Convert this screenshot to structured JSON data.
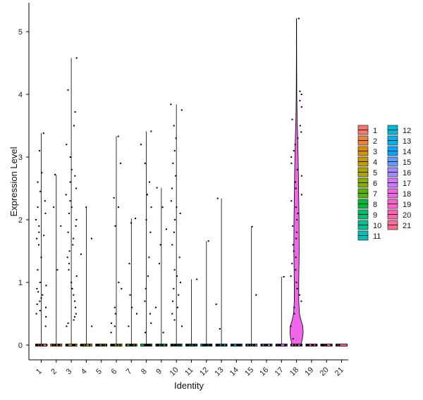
{
  "chart_data": {
    "type": "violin",
    "xlabel": "Identity",
    "ylabel": "Expression Level",
    "categories": [
      "1",
      "2",
      "3",
      "4",
      "5",
      "6",
      "7",
      "8",
      "9",
      "10",
      "11",
      "12",
      "13",
      "14",
      "15",
      "16",
      "17",
      "18",
      "19",
      "20",
      "21"
    ],
    "yticks": [
      0,
      1,
      2,
      3,
      4,
      5
    ],
    "ylim": [
      -0.25,
      5.45
    ],
    "grid": false,
    "legend_position": "right",
    "legend_columns": 2,
    "colors": [
      "#F8766D",
      "#EB8335",
      "#DA8F00",
      "#C49A00",
      "#A9A400",
      "#86AC00",
      "#53B400",
      "#00BA38",
      "#00BE6D",
      "#00C094",
      "#00C0B8",
      "#00BBDA",
      "#00B4F0",
      "#00A9FF",
      "#619CFF",
      "#A58AFF",
      "#D277FF",
      "#F066EA",
      "#FE61CF",
      "#FF64B0",
      "#FF6C91"
    ],
    "max_values": [
      3.38,
      2.72,
      4.58,
      2.2,
      0,
      3.33,
      2.02,
      3.41,
      2.51,
      3.84,
      1.05,
      1.66,
      2.34,
      0,
      1.89,
      0,
      1.09,
      5.21,
      0,
      0,
      0
    ],
    "nonzero_points": [
      [
        0.3,
        0.45,
        0.5,
        0.55,
        0.6,
        0.65,
        0.7,
        0.75,
        0.8,
        0.85,
        0.9,
        0.95,
        1.0,
        1.2,
        1.4,
        1.6,
        1.7,
        1.75,
        1.8,
        1.9,
        2.0,
        2.1,
        2.2,
        2.3,
        2.45,
        2.6,
        2.75,
        3.1,
        3.38
      ],
      [
        1.2,
        1.9,
        2.2,
        2.72
      ],
      [
        0.3,
        0.35,
        0.4,
        0.45,
        0.5,
        0.6,
        0.7,
        0.8,
        0.9,
        1.0,
        1.1,
        1.2,
        1.3,
        1.4,
        1.5,
        1.6,
        1.7,
        1.8,
        1.9,
        2.0,
        2.1,
        2.2,
        2.3,
        2.4,
        2.5,
        2.6,
        2.7,
        2.8,
        3.0,
        3.2,
        3.5,
        3.72,
        4.07,
        4.58
      ],
      [
        0.3,
        1.45,
        1.7,
        2.2
      ],
      [],
      [
        0.2,
        0.3,
        0.35,
        0.5,
        0.6,
        0.9,
        1.0,
        1.9,
        2.2,
        2.35,
        2.9,
        3.33
      ],
      [
        0.3,
        0.5,
        0.6,
        0.8,
        1.3,
        1.95,
        2.02
      ],
      [
        0.2,
        0.35,
        0.5,
        0.7,
        0.9,
        1.1,
        1.4,
        1.8,
        2.0,
        2.2,
        2.4,
        2.6,
        2.9,
        3.2,
        3.41
      ],
      [
        0.2,
        0.6,
        1.3,
        1.6,
        1.85,
        2.2,
        2.51
      ],
      [
        0.3,
        0.4,
        0.5,
        0.6,
        0.7,
        0.8,
        0.9,
        1.0,
        1.1,
        1.2,
        1.4,
        1.6,
        1.8,
        2.0,
        2.1,
        2.2,
        2.3,
        2.5,
        2.7,
        2.9,
        3.1,
        3.3,
        3.5,
        3.75,
        3.84
      ],
      [
        1.05
      ],
      [
        1.66
      ],
      [
        0.26,
        0.65,
        2.34
      ],
      [],
      [
        0.8,
        1.89
      ],
      [],
      [
        1.09
      ],
      [
        0.1,
        0.3,
        0.5,
        0.6,
        0.7,
        0.8,
        0.9,
        1.0,
        1.1,
        1.2,
        1.3,
        1.4,
        1.5,
        1.6,
        1.7,
        1.8,
        1.9,
        2.0,
        2.1,
        2.2,
        2.3,
        2.4,
        2.5,
        2.6,
        2.7,
        2.8,
        2.9,
        3.0,
        3.1,
        3.2,
        3.3,
        3.4,
        3.5,
        3.6,
        3.8,
        3.9,
        4.0,
        4.05,
        5.21
      ],
      [],
      [],
      []
    ],
    "violin_18_profile": [
      [
        0,
        0.33
      ],
      [
        0.1,
        0.44
      ],
      [
        0.2,
        0.5
      ],
      [
        0.3,
        0.47
      ],
      [
        0.4,
        0.33
      ],
      [
        0.5,
        0.22
      ],
      [
        0.7,
        0.17
      ],
      [
        1.0,
        0.17
      ],
      [
        1.5,
        0.2
      ],
      [
        2.0,
        0.19
      ],
      [
        2.5,
        0.16
      ],
      [
        3.0,
        0.12
      ],
      [
        3.3,
        0.09
      ],
      [
        3.6,
        0.05
      ],
      [
        4.0,
        0.02
      ],
      [
        4.6,
        0.01
      ],
      [
        5.21,
        0.005
      ]
    ]
  }
}
